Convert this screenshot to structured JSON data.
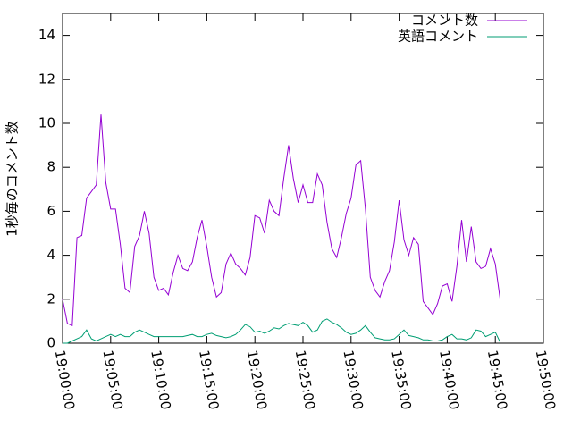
{
  "chart_data": {
    "type": "line",
    "y_label": "1秒毎のコメント数",
    "x": [
      "19:00:00",
      "19:00:30",
      "19:01:00",
      "19:01:30",
      "19:02:00",
      "19:02:30",
      "19:03:00",
      "19:03:30",
      "19:04:00",
      "19:04:30",
      "19:05:00",
      "19:05:30",
      "19:06:00",
      "19:06:30",
      "19:07:00",
      "19:07:30",
      "19:08:00",
      "19:08:30",
      "19:09:00",
      "19:09:30",
      "19:10:00",
      "19:10:30",
      "19:11:00",
      "19:11:30",
      "19:12:00",
      "19:12:30",
      "19:13:00",
      "19:13:30",
      "19:14:00",
      "19:14:30",
      "19:15:00",
      "19:15:30",
      "19:16:00",
      "19:16:30",
      "19:17:00",
      "19:17:30",
      "19:18:00",
      "19:18:30",
      "19:19:00",
      "19:19:30",
      "19:20:00",
      "19:20:30",
      "19:21:00",
      "19:21:30",
      "19:22:00",
      "19:22:30",
      "19:23:00",
      "19:23:30",
      "19:24:00",
      "19:24:30",
      "19:25:00",
      "19:25:30",
      "19:26:00",
      "19:26:30",
      "19:27:00",
      "19:27:30",
      "19:28:00",
      "19:28:30",
      "19:29:00",
      "19:29:30",
      "19:30:00",
      "19:30:30",
      "19:31:00",
      "19:31:30",
      "19:32:00",
      "19:32:30",
      "19:33:00",
      "19:33:30",
      "19:34:00",
      "19:34:30",
      "19:35:00",
      "19:35:30",
      "19:36:00",
      "19:36:30",
      "19:37:00",
      "19:37:30",
      "19:38:00",
      "19:38:30",
      "19:39:00",
      "19:39:30",
      "19:40:00",
      "19:40:30",
      "19:41:00",
      "19:41:30",
      "19:42:00",
      "19:42:30",
      "19:43:00",
      "19:43:30",
      "19:44:00",
      "19:44:30",
      "19:45:00",
      "19:45:30"
    ],
    "series": [
      {
        "name": "コメント数",
        "color": "#9400d3",
        "values": [
          2.0,
          0.9,
          0.8,
          4.8,
          4.9,
          6.6,
          6.9,
          7.2,
          10.4,
          7.3,
          6.1,
          6.1,
          4.5,
          2.5,
          2.3,
          4.4,
          4.9,
          6.0,
          5.0,
          3.0,
          2.4,
          2.5,
          2.2,
          3.2,
          4.0,
          3.4,
          3.3,
          3.7,
          4.8,
          5.6,
          4.4,
          3.0,
          2.1,
          2.3,
          3.6,
          4.1,
          3.6,
          3.4,
          3.1,
          3.9,
          5.8,
          5.7,
          5.0,
          6.5,
          6.0,
          5.8,
          7.5,
          9.0,
          7.5,
          6.4,
          7.2,
          6.4,
          6.4,
          7.7,
          7.2,
          5.5,
          4.3,
          3.9,
          4.8,
          5.9,
          6.6,
          8.1,
          8.3,
          6.1,
          3.0,
          2.4,
          2.1,
          2.8,
          3.3,
          4.6,
          6.5,
          4.7,
          4.0,
          4.8,
          4.5,
          1.9,
          1.6,
          1.3,
          1.8,
          2.6,
          2.7,
          1.9,
          3.5,
          5.6,
          3.7,
          5.3,
          3.7,
          3.4,
          3.5,
          4.3,
          3.6,
          2.0
        ]
      },
      {
        "name": "英語コメント",
        "color": "#009e73",
        "values": [
          0,
          0,
          0.1,
          0.2,
          0.3,
          0.6,
          0.2,
          0.1,
          0.2,
          0.3,
          0.4,
          0.3,
          0.4,
          0.3,
          0.3,
          0.5,
          0.6,
          0.5,
          0.4,
          0.3,
          0.3,
          0.3,
          0.3,
          0.3,
          0.3,
          0.3,
          0.35,
          0.4,
          0.3,
          0.3,
          0.4,
          0.45,
          0.35,
          0.3,
          0.25,
          0.3,
          0.4,
          0.6,
          0.85,
          0.75,
          0.5,
          0.55,
          0.45,
          0.55,
          0.7,
          0.65,
          0.8,
          0.9,
          0.85,
          0.8,
          0.95,
          0.8,
          0.5,
          0.6,
          1.0,
          1.1,
          0.95,
          0.85,
          0.7,
          0.5,
          0.4,
          0.45,
          0.6,
          0.8,
          0.5,
          0.25,
          0.2,
          0.15,
          0.15,
          0.2,
          0.4,
          0.6,
          0.35,
          0.3,
          0.25,
          0.15,
          0.15,
          0.1,
          0.1,
          0.15,
          0.3,
          0.4,
          0.2,
          0.2,
          0.15,
          0.25,
          0.6,
          0.55,
          0.3,
          0.4,
          0.5,
          0.05
        ]
      }
    ],
    "xlim": [
      "19:00:00",
      "19:50:00"
    ],
    "xticks": [
      "19:00:00",
      "19:05:00",
      "19:10:00",
      "19:15:00",
      "19:20:00",
      "19:25:00",
      "19:30:00",
      "19:35:00",
      "19:40:00",
      "19:45:00",
      "19:50:00"
    ],
    "ylim": [
      0,
      15
    ],
    "yticks": [
      0,
      2,
      4,
      6,
      8,
      10,
      12,
      14
    ],
    "legend": "top-right"
  }
}
